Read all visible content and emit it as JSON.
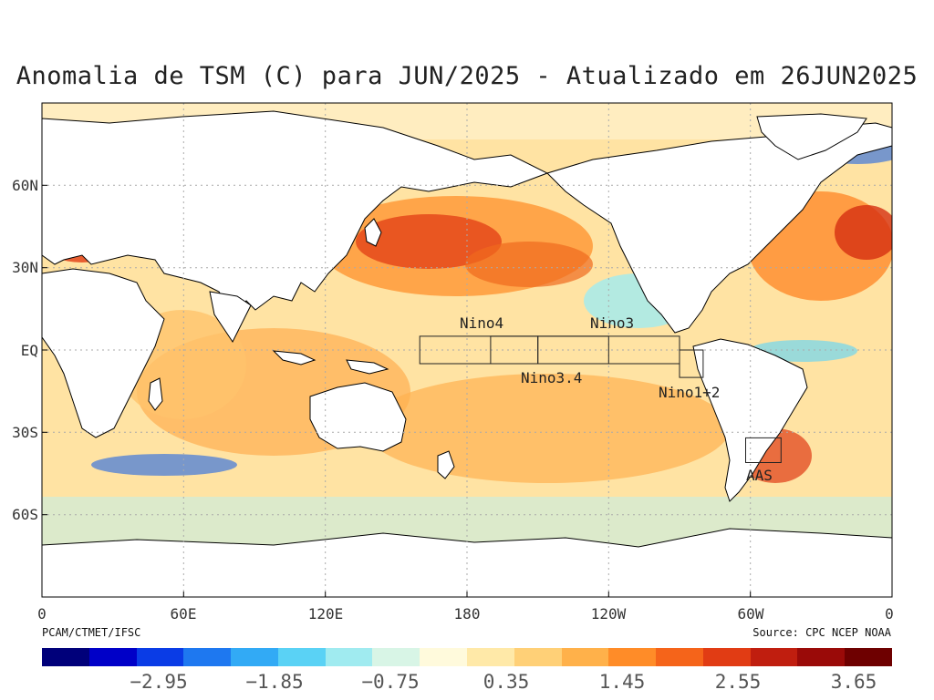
{
  "title": "Anomalia de TSM (C) para JUN/2025 - Atualizado em 26JUN2025",
  "credits": {
    "left": "PCAM/CTMET/IFSC",
    "right": "Source: CPC NCEP NOAA"
  },
  "map": {
    "lon_ticks": [
      "0",
      "60E",
      "120E",
      "180",
      "120W",
      "60W",
      "0"
    ],
    "lat_ticks": [
      "60N",
      "30N",
      "EQ",
      "30S",
      "60S"
    ],
    "regions": [
      "Nino4",
      "Nino3",
      "Nino3.4",
      "Nino1+2",
      "AAS"
    ]
  },
  "colorbar": {
    "labels": [
      "-2.95",
      "-1.85",
      "-0.75",
      "0.35",
      "1.45",
      "2.55",
      "3.65"
    ],
    "colors": [
      "#00007a",
      "#0000c8",
      "#0a3ce6",
      "#1e78f0",
      "#32aaf5",
      "#5ad2f5",
      "#a0ebf0",
      "#d8f5e6",
      "#fffadc",
      "#ffe9a8",
      "#ffd077",
      "#ffb14a",
      "#ff8c28",
      "#f5641a",
      "#e13c14",
      "#c01e0f",
      "#9a0a08",
      "#6e0000"
    ]
  },
  "palette": {
    "land": "#ffffff",
    "coast": "#000000",
    "grid": "#aaaaaa"
  }
}
